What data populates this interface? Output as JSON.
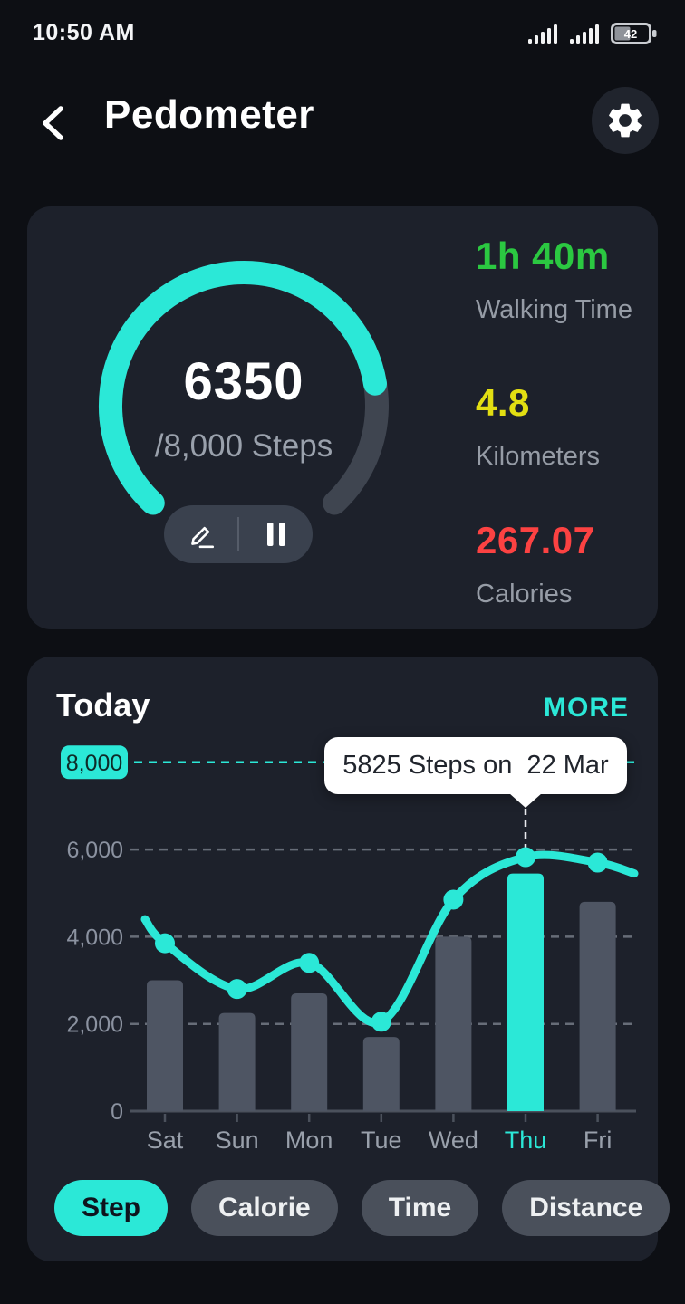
{
  "colors": {
    "accent": "#2be8d7",
    "page_bg": "#0d0f14",
    "card_bg": "#1d212b",
    "bar_gray": "#4e5563",
    "grid_gray": "#7a808c",
    "axis_gray": "#4b515c",
    "text_muted": "#969ca6",
    "tooltip_bg": "#ffffff",
    "tooltip_text": "#20242c",
    "green": "#2bc841",
    "yellow": "#e2de12",
    "red": "#fc4242"
  },
  "status_bar": {
    "time": "10:50 AM",
    "battery": "42"
  },
  "header": {
    "title": "Pedometer"
  },
  "goal_card": {
    "steps": "6350",
    "steps_value": 6350,
    "goal_value": 8000,
    "goal_label": "/8,000 Steps",
    "stats": [
      {
        "value": "1h 40m",
        "label": "Walking Time",
        "color": "#2bc841"
      },
      {
        "value": "4.8",
        "label": "Kilometers",
        "color": "#e2de12"
      },
      {
        "value": "267.07",
        "label": "Calories",
        "color": "#fc4242"
      }
    ]
  },
  "today_card": {
    "title": "Today",
    "more_label": "MORE",
    "tooltip": {
      "text": "5825 Steps on  22 Mar"
    },
    "filters": [
      {
        "label": "Step",
        "active": true
      },
      {
        "label": "Calorie",
        "active": false
      },
      {
        "label": "Time",
        "active": false
      },
      {
        "label": "Distance",
        "active": false
      }
    ]
  },
  "chart_data": {
    "type": "bar+line",
    "title": "Today",
    "categories": [
      "Sat",
      "Sun",
      "Mon",
      "Tue",
      "Wed",
      "Thu",
      "Fri"
    ],
    "series": [
      {
        "name": "daily steps (bars)",
        "type": "bar",
        "values": [
          3000,
          2250,
          2700,
          1700,
          4000,
          5450,
          4800
        ]
      },
      {
        "name": "steps trend (line)",
        "type": "line",
        "values": [
          3850,
          2800,
          3400,
          2050,
          4850,
          5825,
          5700
        ]
      }
    ],
    "highlight": {
      "category": "Thu",
      "index": 5,
      "value": 5825,
      "date": "22 Mar"
    },
    "y_ticks": [
      "0",
      "2,000",
      "4,000",
      "6,000"
    ],
    "y_tick_values": [
      0,
      2000,
      4000,
      6000
    ],
    "goal_line": {
      "value": 8000,
      "label": "8,000"
    },
    "ylim": [
      0,
      8450
    ],
    "grid": "dashed-horizontal",
    "line_edge_extension": {
      "left_value": 4400,
      "right_value": 5450
    }
  }
}
